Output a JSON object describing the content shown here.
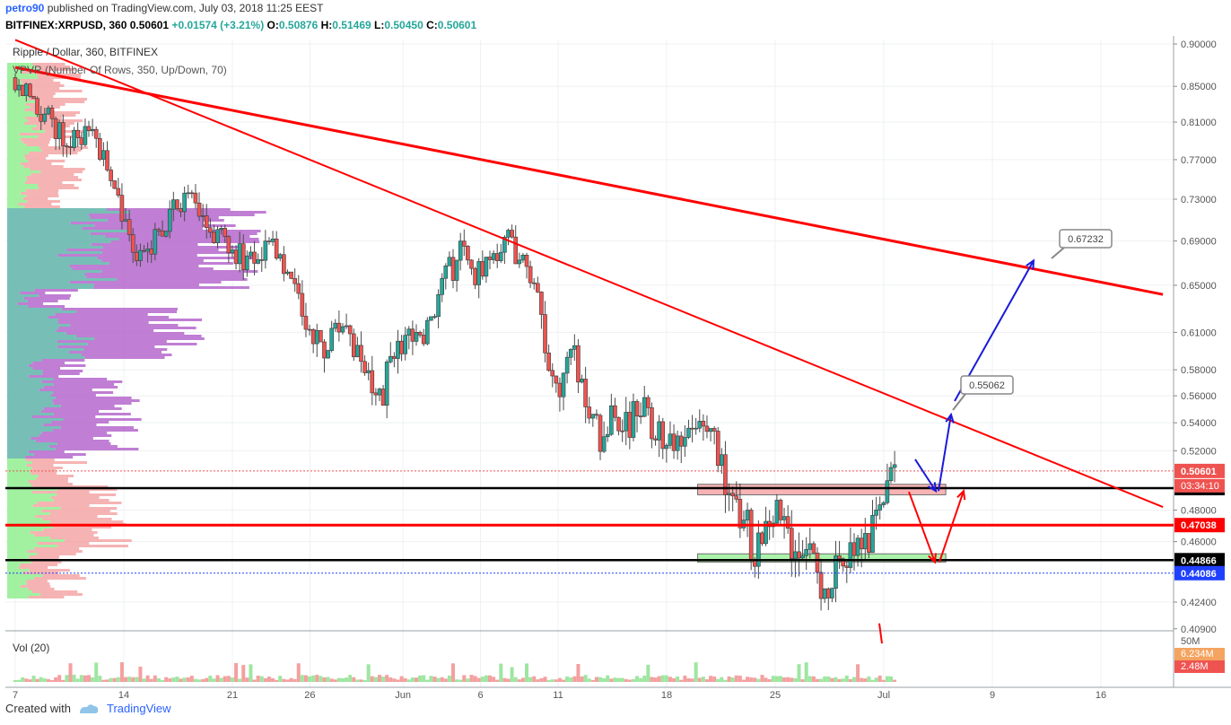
{
  "header": {
    "author": "petro90",
    "published": "published on TradingView.com, July 03, 2018 11:25 EEST",
    "symbol": "BITFINEX:XRPUSD, 360",
    "last": "0.50601",
    "change": "+0.01574 (+3.21%)",
    "o_label": "O:",
    "o_val": "0.50876",
    "h_label": "H:",
    "h_val": "0.51469",
    "l_label": "L:",
    "l_val": "0.50450",
    "c_label": "C:",
    "c_val": "0.50601"
  },
  "legend": {
    "title": "Ripple / Dollar, 360, BITFINEX",
    "indicator": "VPVR (Number Of Rows, 350, Up/Down, 70)",
    "volume": "Vol (20)"
  },
  "footer": {
    "created_with": "Created with",
    "brand": "TradingView"
  },
  "colors": {
    "up": "#26a69a",
    "down": "#ef5350",
    "trend": "#ff0000",
    "arrow_blue": "#1a1adb",
    "vp_up": "#5fb4a9",
    "vp_down": "#b05ec9",
    "zone_red": "#f7a8a8",
    "zone_green": "#9df29d",
    "hline_blue": "#2040ff"
  },
  "chart_data": {
    "type": "candlestick",
    "title": "Ripple / Dollar, 360, BITFINEX",
    "y_axis": {
      "min": 0.4,
      "max": 0.9,
      "ticks": [
        "0.90000",
        "0.85000",
        "0.81000",
        "0.77000",
        "0.73000",
        "0.69000",
        "0.65000",
        "0.61000",
        "0.58000",
        "0.56000",
        "0.54000",
        "0.52000",
        "0.50601",
        "0.49443",
        "0.48000",
        "0.47038",
        "0.46000",
        "0.44866",
        "0.44086",
        "0.42400",
        "0.40900"
      ]
    },
    "x_axis": {
      "labels": [
        "7",
        "14",
        "21",
        "26",
        "Jun",
        "6",
        "11",
        "18",
        "25",
        "Jul",
        "9",
        "16"
      ],
      "start_day": "May 7",
      "end_day": "Jul 19"
    },
    "ohlc_path_close": [
      0.86,
      0.84,
      0.82,
      0.8,
      0.79,
      0.8,
      0.78,
      0.75,
      0.7,
      0.67,
      0.69,
      0.71,
      0.73,
      0.72,
      0.7,
      0.69,
      0.68,
      0.67,
      0.69,
      0.68,
      0.65,
      0.61,
      0.59,
      0.62,
      0.6,
      0.58,
      0.55,
      0.59,
      0.61,
      0.6,
      0.62,
      0.66,
      0.68,
      0.66,
      0.68,
      0.69,
      0.68,
      0.66,
      0.6,
      0.57,
      0.59,
      0.55,
      0.53,
      0.55,
      0.54,
      0.55,
      0.53,
      0.52,
      0.54,
      0.55,
      0.53,
      0.5,
      0.48,
      0.45,
      0.48,
      0.47,
      0.45,
      0.46,
      0.43,
      0.46,
      0.45,
      0.46,
      0.49,
      0.506
    ],
    "horizontal_levels": [
      {
        "value": 0.50601,
        "label": "0.50601",
        "style": "dotted",
        "color": "#ef5350"
      },
      {
        "value": 0.49443,
        "label": "0.49443",
        "style": "solid",
        "color": "#000000"
      },
      {
        "value": 0.47038,
        "label": "0.47038",
        "style": "solid",
        "color": "#ff0000"
      },
      {
        "value": 0.44866,
        "label": "0.44866",
        "style": "solid",
        "color": "#000000"
      },
      {
        "value": 0.44086,
        "label": "0.44086",
        "style": "dotted",
        "color": "#2040ff"
      }
    ],
    "countdown_label": "03:34:10",
    "zones": [
      {
        "name": "resistance-zone",
        "low": 0.49,
        "high": 0.497,
        "from_day": 44,
        "to_day": 60
      },
      {
        "name": "support-zone",
        "low": 0.4475,
        "high": 0.4525,
        "from_day": 44,
        "to_day": 60
      }
    ],
    "trendlines": [
      {
        "from": {
          "day": 0,
          "price": 0.872
        },
        "to": {
          "day": 74,
          "price": 0.642
        }
      },
      {
        "from": {
          "day": 0,
          "price": 0.905
        },
        "to": {
          "day": 74,
          "price": 0.482
        }
      }
    ],
    "callouts": [
      "0.55062",
      "0.67232"
    ],
    "volume": {
      "label": "Vol (20)",
      "axis_labels": [
        "50M",
        "6.234M",
        "2.48M"
      ]
    }
  }
}
